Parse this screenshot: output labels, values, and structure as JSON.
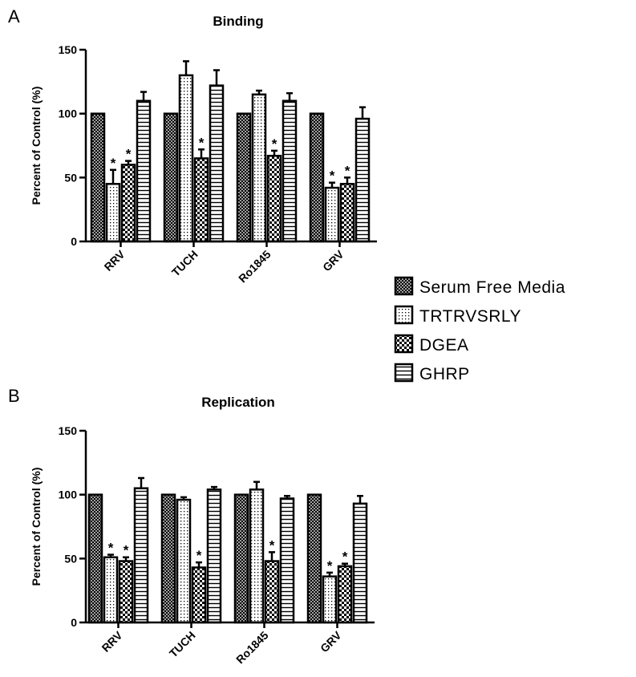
{
  "legend": [
    {
      "name": "Serum Free Media",
      "pattern": "crosshatch"
    },
    {
      "name": "TRTRVSRLY",
      "pattern": "dots"
    },
    {
      "name": "DGEA",
      "pattern": "checker"
    },
    {
      "name": "GHRP",
      "pattern": "hlines"
    }
  ],
  "significance_marker": "*",
  "chart_data": [
    {
      "type": "bar",
      "panel": "A",
      "title": "Binding",
      "xlabel": "",
      "ylabel": "Percent of Control (%)",
      "ylim": [
        0,
        150
      ],
      "yticks": [
        "0",
        "50",
        "100",
        "150"
      ],
      "categories": [
        "RRV",
        "TUCH",
        "Ro1845",
        "GRV"
      ],
      "series": [
        {
          "name": "Serum Free Media",
          "values": [
            100,
            100,
            100,
            100
          ],
          "errors": [
            0,
            0,
            0,
            0
          ],
          "significant": [
            false,
            false,
            false,
            false
          ]
        },
        {
          "name": "TRTRVSRLY",
          "values": [
            45,
            130,
            115,
            42
          ],
          "errors": [
            11,
            11,
            3,
            4
          ],
          "significant": [
            true,
            false,
            false,
            true
          ]
        },
        {
          "name": "DGEA",
          "values": [
            60,
            65,
            67,
            45
          ],
          "errors": [
            3,
            7,
            4,
            5
          ],
          "significant": [
            true,
            true,
            true,
            true
          ]
        },
        {
          "name": "GHRP",
          "values": [
            110,
            122,
            110,
            96
          ],
          "errors": [
            7,
            12,
            6,
            9
          ],
          "significant": [
            false,
            false,
            false,
            false
          ]
        }
      ]
    },
    {
      "type": "bar",
      "panel": "B",
      "title": "Replication",
      "xlabel": "",
      "ylabel": "Percent of Control (%)",
      "ylim": [
        0,
        150
      ],
      "yticks": [
        "0",
        "50",
        "100",
        "150"
      ],
      "categories": [
        "RRV",
        "TUCH",
        "Ro1845",
        "GRV"
      ],
      "series": [
        {
          "name": "Serum Free Media",
          "values": [
            100,
            100,
            100,
            100
          ],
          "errors": [
            0,
            0,
            0,
            0
          ],
          "significant": [
            false,
            false,
            false,
            false
          ]
        },
        {
          "name": "TRTRVSRLY",
          "values": [
            51,
            96,
            104,
            36
          ],
          "errors": [
            2,
            2,
            6,
            3
          ],
          "significant": [
            true,
            false,
            false,
            true
          ]
        },
        {
          "name": "DGEA",
          "values": [
            48,
            43,
            48,
            44
          ],
          "errors": [
            3,
            4,
            7,
            2
          ],
          "significant": [
            true,
            true,
            true,
            true
          ]
        },
        {
          "name": "GHRP",
          "values": [
            105,
            104,
            97,
            93
          ],
          "errors": [
            8,
            2,
            2,
            6
          ],
          "significant": [
            false,
            false,
            false,
            false
          ]
        }
      ]
    }
  ]
}
